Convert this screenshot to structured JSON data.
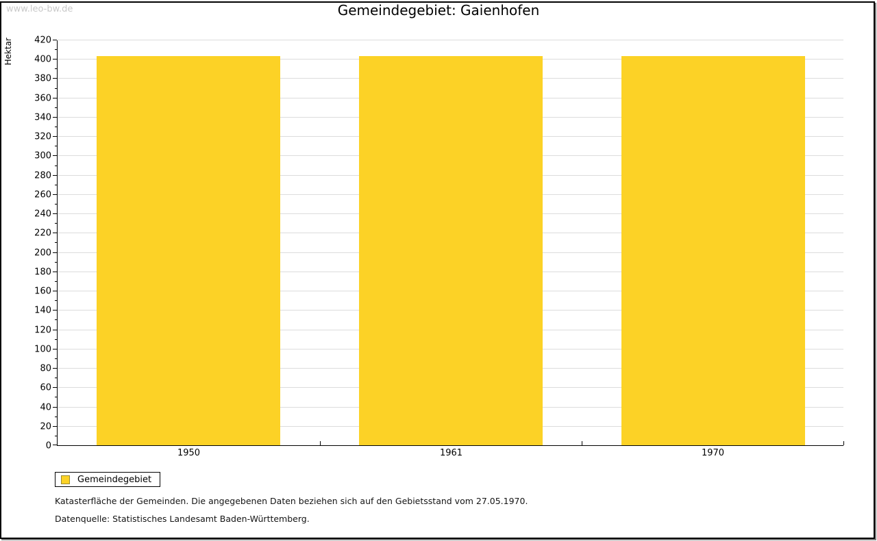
{
  "watermark": "www.leo-bw.de",
  "title": "Gemeindegebiet: Gaienhofen",
  "chart_data": {
    "type": "bar",
    "title": "Gemeindegebiet: Gaienhofen",
    "categories": [
      "1950",
      "1961",
      "1970"
    ],
    "series": [
      {
        "name": "Gemeindegebiet",
        "values": [
          403,
          403,
          403
        ]
      }
    ],
    "xlabel": "",
    "ylabel": "Hektar",
    "ylim": [
      0,
      420
    ],
    "y_major_step": 20,
    "y_minor_step": 10,
    "y_ticks": [
      0,
      20,
      40,
      60,
      80,
      100,
      120,
      140,
      160,
      180,
      200,
      220,
      240,
      260,
      280,
      300,
      320,
      340,
      360,
      380,
      400,
      420
    ],
    "grid": true,
    "legend_position": "bottom-left",
    "bar_color": "#FCD226",
    "grid_color": "#DCDCDC",
    "axis_color": "#000000"
  },
  "legend": {
    "items": [
      {
        "label": "Gemeindegebiet",
        "color": "#FCD226"
      }
    ]
  },
  "footnotes": {
    "line1": "Katasterfläche der Gemeinden. Die angegebenen Daten beziehen sich auf den Gebietsstand vom 27.05.1970.",
    "line2": "Datenquelle: Statistisches Landesamt Baden-Württemberg."
  },
  "colors": {
    "bar": "#FCD226",
    "grid": "#DCDCDC",
    "watermark": "#C9C9C9",
    "frame_shadow": "#7F7F7F"
  }
}
